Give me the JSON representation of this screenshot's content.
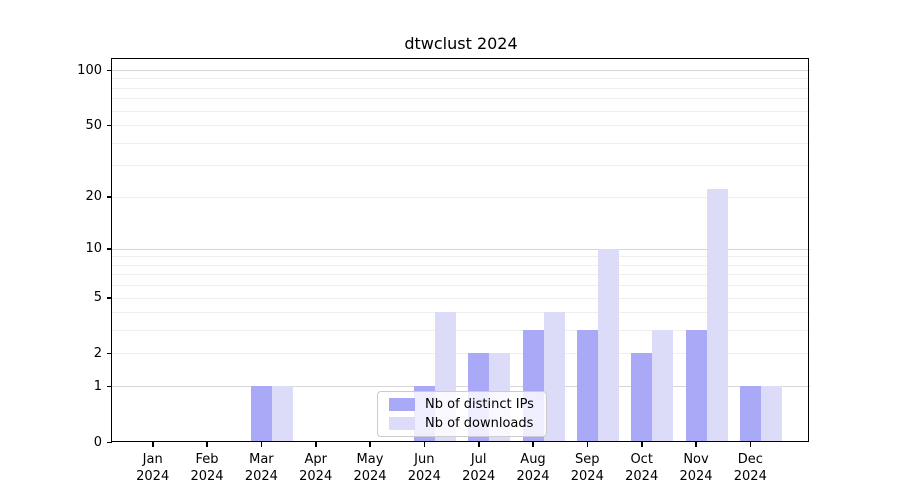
{
  "chart_data": {
    "type": "bar",
    "title": "dtwclust 2024",
    "x_tick_year": "2024",
    "categories": [
      "Jan",
      "Feb",
      "Mar",
      "Apr",
      "May",
      "Jun",
      "Jul",
      "Aug",
      "Sep",
      "Oct",
      "Nov",
      "Dec"
    ],
    "series": [
      {
        "name": "Nb of distinct IPs",
        "color": "#a9a9f7",
        "values": [
          0,
          0,
          1,
          0,
          0,
          1,
          2,
          3,
          3,
          2,
          3,
          1
        ]
      },
      {
        "name": "Nb of downloads",
        "color": "#dcdcf8",
        "values": [
          0,
          0,
          1,
          0,
          0,
          4,
          2,
          4,
          10,
          3,
          22,
          1
        ]
      }
    ],
    "yscale": "log1p",
    "ylim": [
      0,
      115
    ],
    "yticks": [
      0,
      1,
      2,
      5,
      10,
      20,
      50,
      100
    ],
    "minor_gridlines": [
      2,
      3,
      4,
      5,
      6,
      7,
      8,
      9,
      20,
      30,
      40,
      50,
      60,
      70,
      80,
      90
    ],
    "major_gridlines": [
      1,
      10,
      100
    ],
    "grid": true,
    "legend_position": "lower center",
    "colors": {
      "minor_grid": "#efefef",
      "major_grid": "#d6d6d6",
      "axis": "#000000",
      "background": "#ffffff"
    }
  }
}
